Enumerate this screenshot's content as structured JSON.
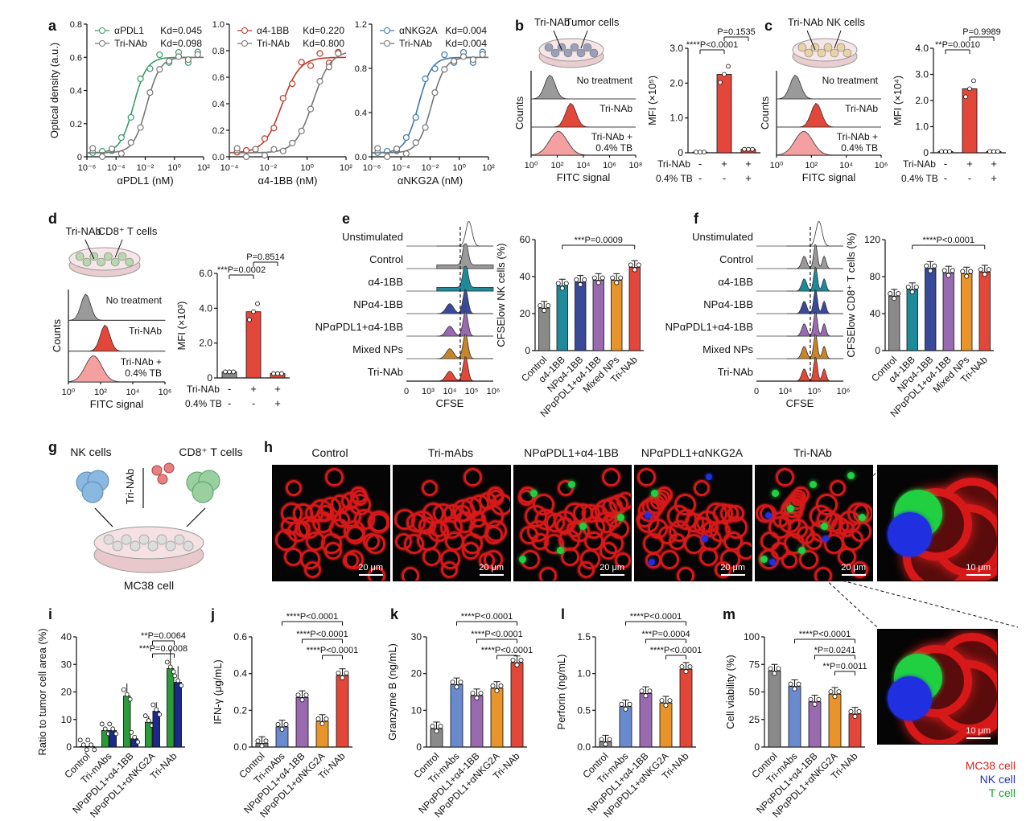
{
  "panels": {
    "a": {
      "label": "a",
      "charts": [
        {
          "type": "scatter",
          "xlabel": "αPDL1 (nM)",
          "ylabel": "Optical density (a.u.)",
          "xlim_exp": [
            -6,
            2
          ],
          "ylim": [
            0,
            0.8
          ],
          "xticks": [
            "10⁻⁶",
            "10⁻⁴",
            "10⁻²",
            "10⁰",
            "10²"
          ],
          "yticks": [
            "0",
            "0.2",
            "0.4",
            "0.6",
            "0.8"
          ],
          "legend": [
            {
              "name": "αPDL1",
              "kd": "Kd=0.045",
              "color": "#3a9a6a"
            },
            {
              "name": "Tri-NAb",
              "kd": "Kd=0.098",
              "color": "#777777"
            }
          ]
        },
        {
          "type": "scatter",
          "xlabel": "α4-1BB (nM)",
          "ylabel": "",
          "xlim_exp": [
            -4,
            2
          ],
          "ylim": [
            0,
            1.0
          ],
          "xticks": [
            "10⁻⁴",
            "10⁻²",
            "10⁰",
            "10²"
          ],
          "yticks": [
            "0.0",
            "0.2",
            "0.4",
            "0.6",
            "0.8",
            "1.0"
          ],
          "legend": [
            {
              "name": "α4-1BB",
              "kd": "Kd=0.220",
              "color": "#c0392b"
            },
            {
              "name": "Tri-NAb",
              "kd": "Kd=0.800",
              "color": "#777777"
            }
          ]
        },
        {
          "type": "scatter",
          "xlabel": "αNKG2A (nM)",
          "ylabel": "",
          "xlim_exp": [
            -6,
            2
          ],
          "ylim": [
            0,
            1.2
          ],
          "xticks": [
            "10⁻⁶",
            "10⁻⁴",
            "10⁻²",
            "10⁰",
            "10²"
          ],
          "yticks": [
            "0.0",
            "0.4",
            "0.8",
            "1.2"
          ],
          "legend": [
            {
              "name": "αNKG2A",
              "kd": "Kd=0.004",
              "color": "#3a7ab0"
            },
            {
              "name": "Tri-NAb",
              "kd": "Kd=0.004",
              "color": "#777777"
            }
          ]
        }
      ]
    },
    "b": {
      "label": "b",
      "cells_label": "Tumor cells",
      "drug_label": "Tri-NAb",
      "hist": [
        "No treatment",
        "Tri-NAb",
        "Tri-NAb +\n0.4% TB"
      ],
      "xlabel": "FITC signal",
      "ylabel": "Counts",
      "xticks": [
        "10⁰",
        "10²",
        "10⁴",
        "10⁶",
        "10⁸"
      ],
      "bar_ylabel": "MFI (×10⁵)",
      "yticks": [
        "0",
        "1.0",
        "2.0",
        "3.0"
      ],
      "values": [
        0.02,
        2.25,
        0.1
      ],
      "p1": "P=0.1535",
      "p2": "****P<0.0001",
      "row1_label": "Tri-NAb",
      "row2_label": "0.4% TB",
      "row1": [
        "-",
        "+",
        "+"
      ],
      "row2": [
        "-",
        "-",
        "+"
      ]
    },
    "c": {
      "label": "c",
      "cells_label": "NK cells",
      "drug_label": "Tri-NAb",
      "hist": [
        "No treatment",
        "Tri-NAb",
        "Tri-NAb +\n0.4% TB"
      ],
      "xlabel": "FITC signal",
      "ylabel": "Counts",
      "xticks": [
        "10⁰",
        "10²",
        "10⁴",
        "10⁶"
      ],
      "bar_ylabel": "MFI (×10⁴)",
      "yticks": [
        "0",
        "1.0",
        "2.0",
        "3.0",
        "4.0"
      ],
      "values": [
        0.05,
        2.45,
        0.05
      ],
      "p1": "P=0.9989",
      "p2": "**P=0.0010",
      "row1_label": "Tri-NAb",
      "row2_label": "0.4% TB",
      "row1": [
        "-",
        "+",
        "+"
      ],
      "row2": [
        "-",
        "-",
        "+"
      ]
    },
    "d": {
      "label": "d",
      "cells_label": "CD8⁺ T cells",
      "drug_label": "Tri-NAb",
      "hist": [
        "No treatment",
        "Tri-NAb",
        "Tri-NAb +\n0.4% TB"
      ],
      "xlabel": "FITC signal",
      "ylabel": "Counts",
      "xticks": [
        "10⁰",
        "10²",
        "10⁴",
        "10⁶"
      ],
      "bar_ylabel": "MFI (×10³)",
      "yticks": [
        "0",
        "2.0",
        "4.0",
        "6.0"
      ],
      "values": [
        0.35,
        3.8,
        0.25
      ],
      "p1": "P=0.8514",
      "p2": "***P=0.0002",
      "row1_label": "Tri-NAb",
      "row2_label": "0.4% TB",
      "row1": [
        "-",
        "+",
        "+"
      ],
      "row2": [
        "-",
        "-",
        "+"
      ]
    },
    "e": {
      "label": "e",
      "rows": [
        "Unstimulated",
        "Control",
        "α4-1BB",
        "NPα4-1BB",
        "NPαPDL1+α4-1BB",
        "Mixed NPs",
        "Tri-NAb"
      ],
      "xlabel": "CFSE",
      "xticks": [
        "0",
        "10³",
        "10⁴",
        "10⁵",
        "10⁶"
      ],
      "bar_ylabel": "CFSElow NK cells (%)",
      "yticks": [
        "0",
        "20",
        "40",
        "60"
      ],
      "categories": [
        "Control",
        "α4-1BB",
        "NPα4-1BB",
        "NPαPDL1+α4-1BB",
        "Mixed NPs",
        "Tri-NAb"
      ],
      "values": [
        23,
        35,
        37,
        38,
        38,
        45
      ],
      "p": "***P=0.0009"
    },
    "f": {
      "label": "f",
      "rows": [
        "Unstimulated",
        "Control",
        "α4-1BB",
        "NPα4-1BB",
        "NPαPDL1+α4-1BB",
        "Mixed NPs",
        "Tri-NAb"
      ],
      "xlabel": "CFSE",
      "xticks": [
        "0",
        "10⁴",
        "10⁵",
        "10⁶"
      ],
      "bar_ylabel": "CFSElow CD8⁺ T cells (%)",
      "yticks": [
        "0",
        "40",
        "80",
        "120"
      ],
      "categories": [
        "Control",
        "α4-1BB",
        "NPα4-1BB",
        "NPαPDL1+α4-1BB",
        "Mixed NPs",
        "Tri-NAb"
      ],
      "values": [
        59,
        66,
        89,
        84,
        83,
        85
      ],
      "p": "****P<0.0001"
    },
    "g": {
      "label": "g",
      "nk": "NK cells",
      "t": "CD8⁺ T cells",
      "drug": "Tri-NAb",
      "dish": "MC38 cell"
    },
    "h": {
      "label": "h",
      "titles": [
        "Control",
        "Tri-mAbs",
        "NPαPDL1+α4-1BB",
        "NPαPDL1+αNKG2A",
        "Tri-NAb"
      ],
      "scale": "20 μm",
      "zoom_scale": "10 μm",
      "legend": [
        "MC38 cell",
        "NK cell",
        "T cell"
      ]
    },
    "i": {
      "label": "i",
      "ylabel": "Ratio to tumor cell area (%)",
      "yticks": [
        "0",
        "10",
        "20",
        "30",
        "40"
      ],
      "categories": [
        "Control",
        "Tri-mAbs",
        "NPαPDL1+α4-1BB",
        "NPαPDL1+αNKG2A",
        "Tri-NAb"
      ],
      "series": [
        {
          "name": "T cell",
          "values": [
            0.2,
            6,
            18.5,
            9,
            28.5
          ]
        },
        {
          "name": "NK cell",
          "values": [
            0.2,
            6,
            3,
            13,
            23.5
          ]
        }
      ],
      "p1": "**P=0.0064",
      "p2": "***P=0.0008"
    },
    "j": {
      "label": "j",
      "ylabel": "IFN-γ (μg/mL)",
      "yticks": [
        "0.0",
        "0.2",
        "0.4",
        "0.6"
      ],
      "categories": [
        "Control",
        "Tri-mAbs",
        "NPαPDL1+α4-1BB",
        "NPαPDL1+αNKG2A",
        "Tri-NAb"
      ],
      "values": [
        0.02,
        0.11,
        0.27,
        0.14,
        0.39
      ],
      "p": [
        "****P<0.0001",
        "****P<0.0001",
        "****P<0.0001"
      ]
    },
    "k": {
      "label": "k",
      "ylabel": "Granzyme B (ng/mL)",
      "yticks": [
        "0",
        "10",
        "20",
        "30"
      ],
      "categories": [
        "Control",
        "Tri-mAbs",
        "NPαPDL1+α4-1BB",
        "NPαPDL1+αNKG2A",
        "Tri-NAb"
      ],
      "values": [
        5,
        17,
        14,
        16,
        23
      ],
      "p": [
        "****P<0.0001",
        "****P<0.0001",
        "****P<0.0001"
      ]
    },
    "l": {
      "label": "l",
      "ylabel": "Perforin (ng/mL)",
      "yticks": [
        "0.0",
        "0.5",
        "1.0",
        "1.5"
      ],
      "categories": [
        "Control",
        "Tri-mAbs",
        "NPαPDL1+α4-1BB",
        "NPαPDL1+αNKG2A",
        "Tri-NAb"
      ],
      "values": [
        0.07,
        0.55,
        0.73,
        0.6,
        1.06
      ],
      "p": [
        "****P<0.0001",
        "***P=0.0004",
        "****P<0.0001"
      ]
    },
    "m": {
      "label": "m",
      "ylabel": "Cell viability (%)",
      "yticks": [
        "0",
        "25",
        "50",
        "75",
        "100"
      ],
      "categories": [
        "Control",
        "Tri-mAbs",
        "NPαPDL1+α4-1BB",
        "NPαPDL1+αNKG2A",
        "Tri-NAb"
      ],
      "values": [
        69,
        55,
        41,
        48,
        30
      ],
      "p": [
        "****P<0.0001",
        "*P=0.0241",
        "**P=0.0011"
      ]
    }
  },
  "chart_data": [
    {
      "type": "bar",
      "title": "b",
      "categories": [
        "No treatment",
        "Tri-NAb",
        "Tri-NAb + 0.4% TB"
      ],
      "values": [
        0.02,
        2.25,
        0.1
      ],
      "ylabel": "MFI (×10⁵)",
      "ylim": [
        0,
        3
      ]
    },
    {
      "type": "bar",
      "title": "c",
      "categories": [
        "No treatment",
        "Tri-NAb",
        "Tri-NAb + 0.4% TB"
      ],
      "values": [
        0.05,
        2.45,
        0.05
      ],
      "ylabel": "MFI (×10⁴)",
      "ylim": [
        0,
        4
      ]
    },
    {
      "type": "bar",
      "title": "d",
      "categories": [
        "No treatment",
        "Tri-NAb",
        "Tri-NAb + 0.4% TB"
      ],
      "values": [
        0.35,
        3.8,
        0.25
      ],
      "ylabel": "MFI (×10³)",
      "ylim": [
        0,
        6
      ]
    },
    {
      "type": "bar",
      "title": "e",
      "categories": [
        "Control",
        "α4-1BB",
        "NPα4-1BB",
        "NPαPDL1+α4-1BB",
        "Mixed NPs",
        "Tri-NAb"
      ],
      "values": [
        23,
        35,
        37,
        38,
        38,
        45
      ],
      "ylim": [
        0,
        60
      ]
    },
    {
      "type": "bar",
      "title": "f",
      "categories": [
        "Control",
        "α4-1BB",
        "NPα4-1BB",
        "NPαPDL1+α4-1BB",
        "Mixed NPs",
        "Tri-NAb"
      ],
      "values": [
        59,
        66,
        89,
        84,
        83,
        85
      ],
      "ylim": [
        0,
        120
      ]
    },
    {
      "type": "bar",
      "title": "i",
      "categories": [
        "Control",
        "Tri-mAbs",
        "NPαPDL1+α4-1BB",
        "NPαPDL1+αNKG2A",
        "Tri-NAb"
      ],
      "series": [
        {
          "name": "T cell",
          "values": [
            0.2,
            6,
            18.5,
            9,
            28.5
          ]
        },
        {
          "name": "NK cell",
          "values": [
            0.2,
            6,
            3,
            13,
            23.5
          ]
        }
      ],
      "ylim": [
        0,
        40
      ]
    },
    {
      "type": "bar",
      "title": "j",
      "categories": [
        "Control",
        "Tri-mAbs",
        "NPαPDL1+α4-1BB",
        "NPαPDL1+αNKG2A",
        "Tri-NAb"
      ],
      "values": [
        0.02,
        0.11,
        0.27,
        0.14,
        0.39
      ],
      "ylim": [
        0,
        0.6
      ]
    },
    {
      "type": "bar",
      "title": "k",
      "categories": [
        "Control",
        "Tri-mAbs",
        "NPαPDL1+α4-1BB",
        "NPαPDL1+αNKG2A",
        "Tri-NAb"
      ],
      "values": [
        5,
        17,
        14,
        16,
        23
      ],
      "ylim": [
        0,
        30
      ]
    },
    {
      "type": "bar",
      "title": "l",
      "categories": [
        "Control",
        "Tri-mAbs",
        "NPαPDL1+α4-1BB",
        "NPαPDL1+αNKG2A",
        "Tri-NAb"
      ],
      "values": [
        0.07,
        0.55,
        0.73,
        0.6,
        1.06
      ],
      "ylim": [
        0,
        1.5
      ]
    },
    {
      "type": "bar",
      "title": "m",
      "categories": [
        "Control",
        "Tri-mAbs",
        "NPαPDL1+α4-1BB",
        "NPαPDL1+αNKG2A",
        "Tri-NAb"
      ],
      "values": [
        69,
        55,
        41,
        48,
        30
      ],
      "ylim": [
        0,
        100
      ]
    }
  ],
  "colors": {
    "grey": "#8a8a8a",
    "red": "#e2473a",
    "teal": "#1f8a9a",
    "navy": "#3a4a9a",
    "purple": "#9a6ab0",
    "orange": "#e8942a",
    "green": "#2a9a3a",
    "blue": "#1a2a8a"
  }
}
